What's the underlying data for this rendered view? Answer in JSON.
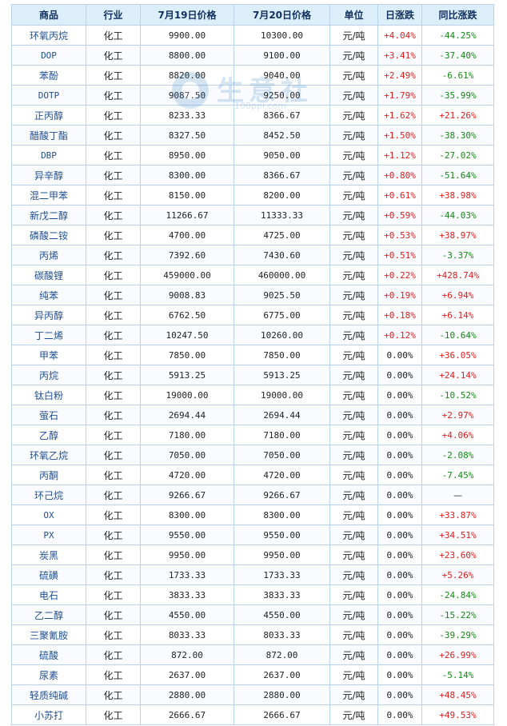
{
  "table": {
    "headers": [
      "商品",
      "行业",
      "7月19日价格",
      "7月20日价格",
      "单位",
      "日涨跌",
      "同比涨跌"
    ],
    "rows": [
      {
        "name": "环氧丙烷",
        "industry": "化工",
        "p19": "9900.00",
        "p20": "10300.00",
        "unit": "元/吨",
        "daily": "+4.04%",
        "yoy": "-44.25%"
      },
      {
        "name": "DOP",
        "industry": "化工",
        "p19": "8800.00",
        "p20": "9100.00",
        "unit": "元/吨",
        "daily": "+3.41%",
        "yoy": "-37.40%"
      },
      {
        "name": "苯酚",
        "industry": "化工",
        "p19": "8820.00",
        "p20": "9040.00",
        "unit": "元/吨",
        "daily": "+2.49%",
        "yoy": "-6.61%"
      },
      {
        "name": "DOTP",
        "industry": "化工",
        "p19": "9087.50",
        "p20": "9250.00",
        "unit": "元/吨",
        "daily": "+1.79%",
        "yoy": "-35.99%"
      },
      {
        "name": "正丙醇",
        "industry": "化工",
        "p19": "8233.33",
        "p20": "8366.67",
        "unit": "元/吨",
        "daily": "+1.62%",
        "yoy": "+21.26%"
      },
      {
        "name": "醋酸丁酯",
        "industry": "化工",
        "p19": "8327.50",
        "p20": "8452.50",
        "unit": "元/吨",
        "daily": "+1.50%",
        "yoy": "-38.30%"
      },
      {
        "name": "DBP",
        "industry": "化工",
        "p19": "8950.00",
        "p20": "9050.00",
        "unit": "元/吨",
        "daily": "+1.12%",
        "yoy": "-27.02%"
      },
      {
        "name": "异辛醇",
        "industry": "化工",
        "p19": "8300.00",
        "p20": "8366.67",
        "unit": "元/吨",
        "daily": "+0.80%",
        "yoy": "-51.64%"
      },
      {
        "name": "混二甲苯",
        "industry": "化工",
        "p19": "8150.00",
        "p20": "8200.00",
        "unit": "元/吨",
        "daily": "+0.61%",
        "yoy": "+38.98%"
      },
      {
        "name": "新戊二醇",
        "industry": "化工",
        "p19": "11266.67",
        "p20": "11333.33",
        "unit": "元/吨",
        "daily": "+0.59%",
        "yoy": "-44.03%"
      },
      {
        "name": "磷酸二铵",
        "industry": "化工",
        "p19": "4700.00",
        "p20": "4725.00",
        "unit": "元/吨",
        "daily": "+0.53%",
        "yoy": "+38.97%"
      },
      {
        "name": "丙烯",
        "industry": "化工",
        "p19": "7392.60",
        "p20": "7430.60",
        "unit": "元/吨",
        "daily": "+0.51%",
        "yoy": "-3.37%"
      },
      {
        "name": "碳酸锂",
        "industry": "化工",
        "p19": "459000.00",
        "p20": "460000.00",
        "unit": "元/吨",
        "daily": "+0.22%",
        "yoy": "+428.74%"
      },
      {
        "name": "纯苯",
        "industry": "化工",
        "p19": "9008.83",
        "p20": "9025.50",
        "unit": "元/吨",
        "daily": "+0.19%",
        "yoy": "+6.94%"
      },
      {
        "name": "异丙醇",
        "industry": "化工",
        "p19": "6762.50",
        "p20": "6775.00",
        "unit": "元/吨",
        "daily": "+0.18%",
        "yoy": "+6.14%"
      },
      {
        "name": "丁二烯",
        "industry": "化工",
        "p19": "10247.50",
        "p20": "10260.00",
        "unit": "元/吨",
        "daily": "+0.12%",
        "yoy": "-10.64%"
      },
      {
        "name": "甲苯",
        "industry": "化工",
        "p19": "7850.00",
        "p20": "7850.00",
        "unit": "元/吨",
        "daily": "0.00%",
        "yoy": "+36.05%"
      },
      {
        "name": "丙烷",
        "industry": "化工",
        "p19": "5913.25",
        "p20": "5913.25",
        "unit": "元/吨",
        "daily": "0.00%",
        "yoy": "+24.14%"
      },
      {
        "name": "钛白粉",
        "industry": "化工",
        "p19": "19000.00",
        "p20": "19000.00",
        "unit": "元/吨",
        "daily": "0.00%",
        "yoy": "-10.52%"
      },
      {
        "name": "萤石",
        "industry": "化工",
        "p19": "2694.44",
        "p20": "2694.44",
        "unit": "元/吨",
        "daily": "0.00%",
        "yoy": "+2.97%"
      },
      {
        "name": "乙醇",
        "industry": "化工",
        "p19": "7180.00",
        "p20": "7180.00",
        "unit": "元/吨",
        "daily": "0.00%",
        "yoy": "+4.06%"
      },
      {
        "name": "环氧乙烷",
        "industry": "化工",
        "p19": "7050.00",
        "p20": "7050.00",
        "unit": "元/吨",
        "daily": "0.00%",
        "yoy": "-2.08%"
      },
      {
        "name": "丙酮",
        "industry": "化工",
        "p19": "4720.00",
        "p20": "4720.00",
        "unit": "元/吨",
        "daily": "0.00%",
        "yoy": "-7.45%"
      },
      {
        "name": "环己烷",
        "industry": "化工",
        "p19": "9266.67",
        "p20": "9266.67",
        "unit": "元/吨",
        "daily": "0.00%",
        "yoy": "—"
      },
      {
        "name": "OX",
        "industry": "化工",
        "p19": "8300.00",
        "p20": "8300.00",
        "unit": "元/吨",
        "daily": "0.00%",
        "yoy": "+33.87%"
      },
      {
        "name": "PX",
        "industry": "化工",
        "p19": "9550.00",
        "p20": "9550.00",
        "unit": "元/吨",
        "daily": "0.00%",
        "yoy": "+34.51%"
      },
      {
        "name": "炭黑",
        "industry": "化工",
        "p19": "9950.00",
        "p20": "9950.00",
        "unit": "元/吨",
        "daily": "0.00%",
        "yoy": "+23.60%"
      },
      {
        "name": "硫磺",
        "industry": "化工",
        "p19": "1733.33",
        "p20": "1733.33",
        "unit": "元/吨",
        "daily": "0.00%",
        "yoy": "+5.26%"
      },
      {
        "name": "电石",
        "industry": "化工",
        "p19": "3833.33",
        "p20": "3833.33",
        "unit": "元/吨",
        "daily": "0.00%",
        "yoy": "-24.84%"
      },
      {
        "name": "乙二醇",
        "industry": "化工",
        "p19": "4550.00",
        "p20": "4550.00",
        "unit": "元/吨",
        "daily": "0.00%",
        "yoy": "-15.22%"
      },
      {
        "name": "三聚氰胺",
        "industry": "化工",
        "p19": "8033.33",
        "p20": "8033.33",
        "unit": "元/吨",
        "daily": "0.00%",
        "yoy": "-39.29%"
      },
      {
        "name": "硫酸",
        "industry": "化工",
        "p19": "872.00",
        "p20": "872.00",
        "unit": "元/吨",
        "daily": "0.00%",
        "yoy": "+26.99%"
      },
      {
        "name": "尿素",
        "industry": "化工",
        "p19": "2637.00",
        "p20": "2637.00",
        "unit": "元/吨",
        "daily": "0.00%",
        "yoy": "-5.14%"
      },
      {
        "name": "轻质纯碱",
        "industry": "化工",
        "p19": "2880.00",
        "p20": "2880.00",
        "unit": "元/吨",
        "daily": "0.00%",
        "yoy": "+48.45%"
      },
      {
        "name": "小苏打",
        "industry": "化工",
        "p19": "2666.67",
        "p20": "2666.67",
        "unit": "元/吨",
        "daily": "0.00%",
        "yoy": "+49.53%"
      }
    ]
  },
  "watermark": {
    "text": "生意社",
    "url": "100ppi.com"
  },
  "colors": {
    "up": "#e21b1b",
    "down": "#138a13",
    "header_bg": "#ddeefb",
    "border": "#b9d3ec",
    "name": "#1f4f92"
  }
}
